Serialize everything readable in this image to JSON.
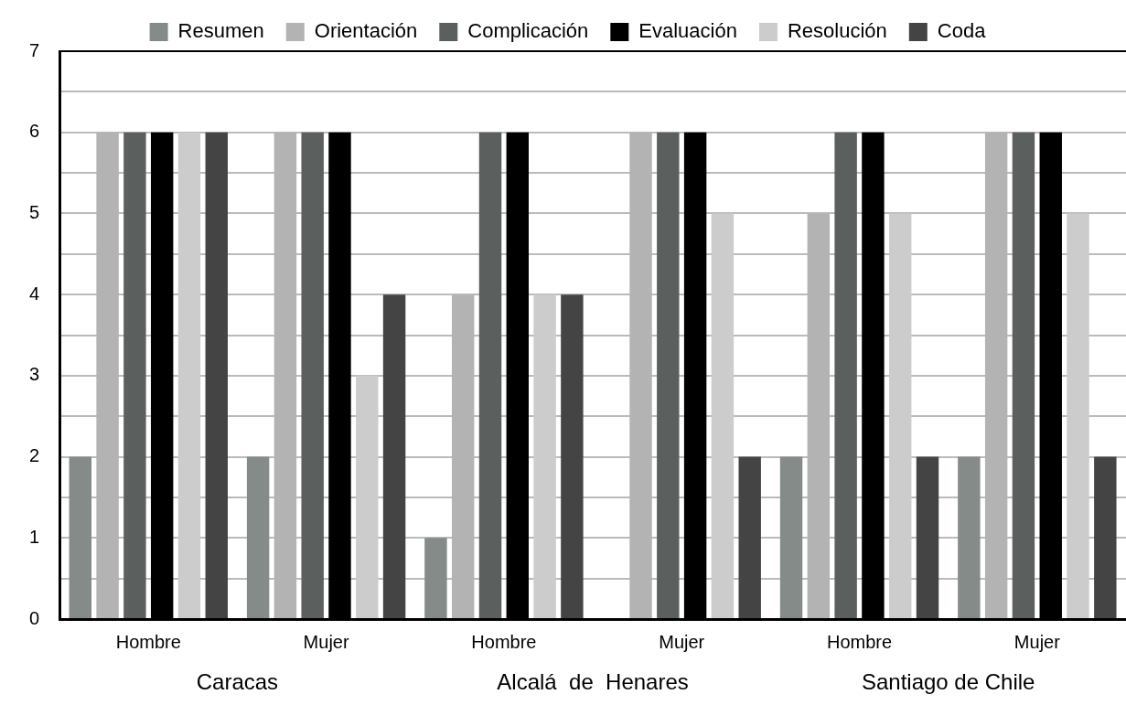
{
  "chart_data": {
    "type": "bar",
    "categories": [
      "Hombre",
      "Mujer",
      "Hombre",
      "Mujer",
      "Hombre",
      "Mujer"
    ],
    "series": [
      {
        "name": "Resumen",
        "color": "#848b88",
        "values": [
          2,
          2,
          1,
          0,
          2,
          2
        ]
      },
      {
        "name": "Orientación",
        "color": "#b3b3b3",
        "values": [
          6,
          6,
          4,
          6,
          5,
          6
        ]
      },
      {
        "name": "Complicación",
        "color": "#5b5f5e",
        "values": [
          6,
          6,
          6,
          6,
          6,
          6
        ]
      },
      {
        "name": "Evaluación",
        "color": "#000000",
        "values": [
          6,
          6,
          6,
          6,
          6,
          6
        ]
      },
      {
        "name": "Resolución",
        "color": "#cccccc",
        "values": [
          6,
          3,
          4,
          5,
          5,
          5
        ]
      },
      {
        "name": "Coda",
        "color": "#444444",
        "values": [
          6,
          4,
          4,
          2,
          2,
          2
        ]
      }
    ],
    "ylim": [
      0,
      7
    ],
    "yticks": [
      0,
      {
        "value": 0.5,
        "label": null
      },
      1,
      {
        "value": 1.5,
        "label": null
      },
      2,
      {
        "value": 2.5,
        "label": null
      },
      3,
      {
        "value": 3.5,
        "label": null
      },
      4,
      {
        "value": 4.5,
        "label": null
      },
      5,
      {
        "value": 5.5,
        "label": null
      },
      6,
      {
        "value": 6.5,
        "label": null
      },
      7
    ],
    "annotations": [
      "Caracas",
      "Alcalá  de  Henares",
      "Santiago de Chile"
    ],
    "grid": "y",
    "legend": "top"
  }
}
